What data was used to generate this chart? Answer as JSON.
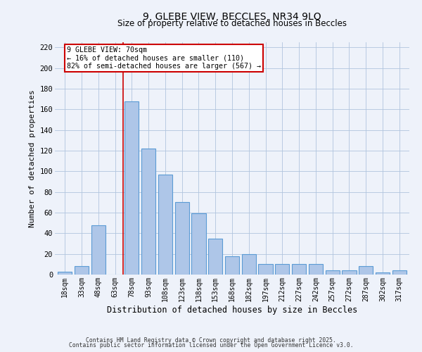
{
  "title_line1": "9, GLEBE VIEW, BECCLES, NR34 9LQ",
  "title_line2": "Size of property relative to detached houses in Beccles",
  "xlabel": "Distribution of detached houses by size in Beccles",
  "ylabel": "Number of detached properties",
  "categories": [
    "18sqm",
    "33sqm",
    "48sqm",
    "63sqm",
    "78sqm",
    "93sqm",
    "108sqm",
    "123sqm",
    "138sqm",
    "153sqm",
    "168sqm",
    "182sqm",
    "197sqm",
    "212sqm",
    "227sqm",
    "242sqm",
    "257sqm",
    "272sqm",
    "287sqm",
    "302sqm",
    "317sqm"
  ],
  "values": [
    3,
    8,
    48,
    0,
    168,
    122,
    97,
    70,
    59,
    35,
    18,
    20,
    10,
    10,
    10,
    10,
    4,
    4,
    8,
    2,
    4
  ],
  "bar_color": "#aec6e8",
  "bar_edge_color": "#5b9bd5",
  "grid_color": "#b0c4de",
  "background_color": "#eef2fa",
  "red_line_x": 3.5,
  "annotation_text": "9 GLEBE VIEW: 70sqm\n← 16% of detached houses are smaller (110)\n82% of semi-detached houses are larger (567) →",
  "annotation_box_color": "#ffffff",
  "annotation_box_edge": "#cc0000",
  "ylim": [
    0,
    225
  ],
  "yticks": [
    0,
    20,
    40,
    60,
    80,
    100,
    120,
    140,
    160,
    180,
    200,
    220
  ],
  "footer_line1": "Contains HM Land Registry data © Crown copyright and database right 2025.",
  "footer_line2": "Contains public sector information licensed under the Open Government Licence v3.0."
}
